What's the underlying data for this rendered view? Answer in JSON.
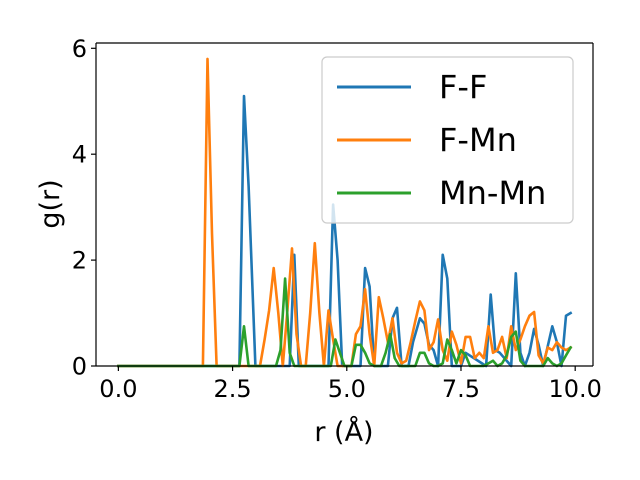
{
  "chart_data": {
    "type": "line",
    "xlabel": "r (Å)",
    "ylabel": "g(r)",
    "xlim": [
      -0.49,
      10.39
    ],
    "ylim": [
      0,
      6.1
    ],
    "xticks": [
      0.0,
      2.5,
      5.0,
      7.5,
      10.0
    ],
    "xtick_labels": [
      "0.0",
      "2.5",
      "5.0",
      "7.5",
      "10.0"
    ],
    "yticks": [
      0,
      2,
      4,
      6
    ],
    "ytick_labels": [
      "0",
      "2",
      "4",
      "6"
    ],
    "grid": false,
    "legend_position": "top-right",
    "series": [
      {
        "name": "F-F",
        "color": "#1f77b4",
        "x": [
          0.0,
          2.55,
          2.65,
          2.75,
          2.85,
          3.0,
          3.75,
          3.85,
          3.95,
          4.05,
          4.6,
          4.7,
          4.8,
          4.9,
          5.3,
          5.4,
          5.5,
          5.6,
          5.9,
          6.0,
          6.1,
          6.2,
          6.35,
          6.45,
          6.6,
          6.7,
          6.8,
          6.9,
          7.0,
          7.1,
          7.2,
          7.3,
          7.5,
          7.6,
          8.05,
          8.15,
          8.25,
          8.35,
          8.6,
          8.7,
          8.8,
          8.9,
          9.0,
          9.1,
          9.2,
          9.3,
          9.5,
          9.6,
          9.7,
          9.8,
          9.9
        ],
        "values": [
          0,
          0,
          0,
          5.1,
          3.4,
          0,
          0,
          2.1,
          0,
          0,
          0,
          3.05,
          2.0,
          0,
          0,
          1.85,
          1.5,
          0,
          0,
          0.9,
          1.1,
          0,
          0,
          0.45,
          0.9,
          0.8,
          0.4,
          0.3,
          0,
          2.1,
          1.65,
          0,
          0,
          0.25,
          0,
          1.35,
          0.3,
          0.25,
          0,
          1.75,
          0.25,
          0,
          0.25,
          0.7,
          0.4,
          0,
          0.75,
          0.45,
          0,
          0.95,
          1.0
        ]
      },
      {
        "name": "F-Mn",
        "color": "#ff7f0e",
        "x": [
          0.0,
          1.85,
          1.95,
          2.05,
          2.15,
          3.1,
          3.2,
          3.3,
          3.4,
          3.5,
          3.6,
          3.7,
          3.8,
          3.9,
          4.0,
          4.1,
          4.2,
          4.3,
          4.4,
          4.5,
          4.6,
          4.7,
          4.8,
          5.1,
          5.2,
          5.3,
          5.4,
          5.5,
          5.6,
          5.7,
          5.8,
          5.9,
          6.0,
          6.1,
          6.2,
          6.3,
          6.4,
          6.5,
          6.6,
          6.7,
          6.8,
          6.9,
          7.0,
          7.1,
          7.2,
          7.3,
          7.4,
          7.5,
          7.6,
          7.7,
          7.8,
          7.9,
          8.0,
          8.1,
          8.2,
          8.3,
          8.4,
          8.5,
          8.6,
          8.7,
          8.8,
          8.9,
          9.0,
          9.1,
          9.2,
          9.3,
          9.4,
          9.5,
          9.6,
          9.7,
          9.8,
          9.9
        ],
        "values": [
          0,
          0,
          5.8,
          2.5,
          0,
          0,
          0.5,
          1.05,
          1.85,
          1.0,
          0,
          1.05,
          2.22,
          0.6,
          0,
          0,
          1.0,
          2.32,
          1.0,
          0,
          1.05,
          0.5,
          0,
          0,
          0.6,
          0.75,
          1.45,
          0.6,
          0,
          1.3,
          0.9,
          0.45,
          0.9,
          0.25,
          0.05,
          0.1,
          0.45,
          0.85,
          1.22,
          1.05,
          0.3,
          0.45,
          0.88,
          0.3,
          0.1,
          0.65,
          0.4,
          0.05,
          0.55,
          0.55,
          0.15,
          0.25,
          0.15,
          0.75,
          0.25,
          0.3,
          0.55,
          0.15,
          0.75,
          0.3,
          0.5,
          0.75,
          0.95,
          1.02,
          0.2,
          0.05,
          0.35,
          0.3,
          0.45,
          0.35,
          0.3,
          0.35
        ]
      },
      {
        "name": "Mn-Mn",
        "color": "#2ca02c",
        "x": [
          0.0,
          2.55,
          2.65,
          2.75,
          2.85,
          3.45,
          3.55,
          3.65,
          3.75,
          3.85,
          4.65,
          4.75,
          4.85,
          4.95,
          5.1,
          5.2,
          5.3,
          5.4,
          5.5,
          5.6,
          5.75,
          5.85,
          5.95,
          6.05,
          6.15,
          6.5,
          6.6,
          6.7,
          6.8,
          6.9,
          7.0,
          7.1,
          7.2,
          7.3,
          7.4,
          7.5,
          7.6,
          7.7,
          7.8,
          7.9,
          8.0,
          8.2,
          8.3,
          8.4,
          8.5,
          8.6,
          8.7,
          8.8,
          8.9,
          9.0,
          9.1,
          9.3,
          9.4,
          9.5,
          9.6,
          9.7,
          9.8,
          9.9
        ],
        "values": [
          0,
          0,
          0,
          0.75,
          0,
          0,
          0.3,
          1.65,
          0.25,
          0,
          0,
          0.5,
          0.25,
          0,
          0,
          0.4,
          0.4,
          0.25,
          0.05,
          0,
          0,
          0.25,
          0.6,
          0.15,
          0,
          0,
          0.25,
          0.25,
          0.05,
          0,
          0,
          0.05,
          0.5,
          0.3,
          0.05,
          0.3,
          0.2,
          0,
          0,
          0,
          0,
          0.1,
          0,
          0.05,
          0.2,
          0.55,
          0.65,
          0.1,
          0,
          0,
          0,
          0,
          0.15,
          0.05,
          0,
          0.05,
          0.2,
          0.35
        ]
      }
    ]
  }
}
